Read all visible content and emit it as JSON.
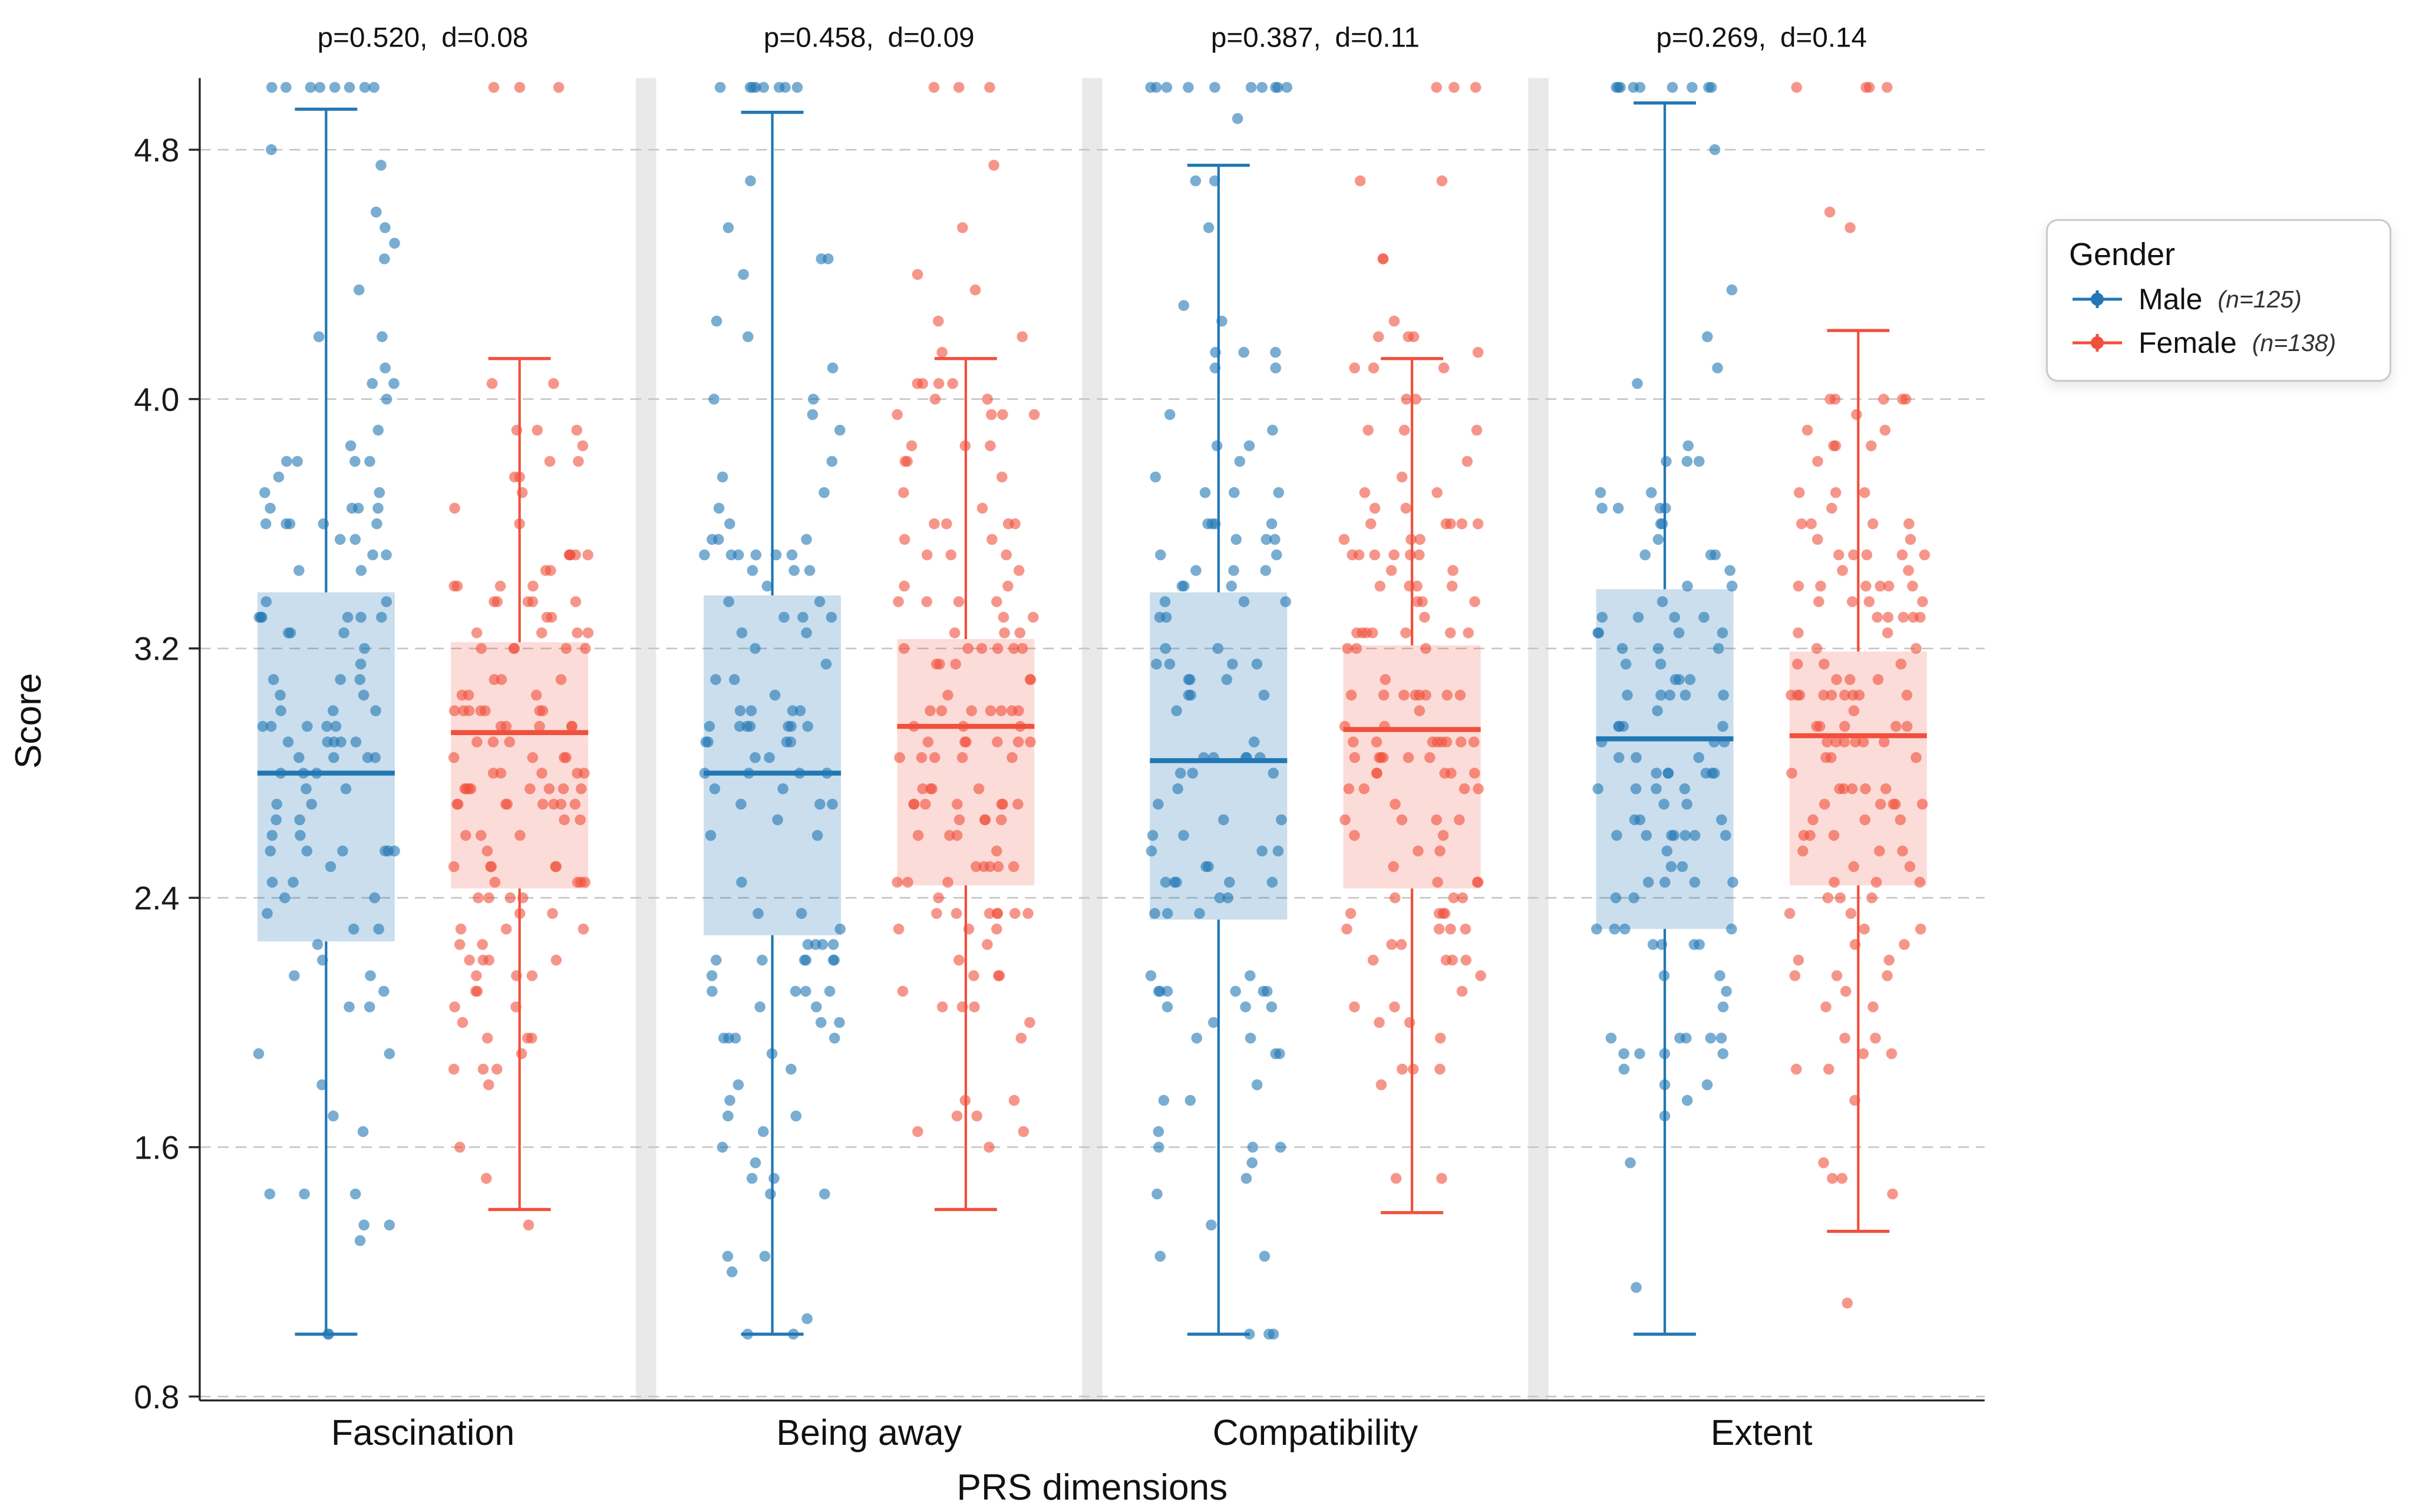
{
  "figure": {
    "background": "#ffffff"
  },
  "legend": {
    "title": "Gender",
    "items": [
      {
        "label": "Male",
        "note": "(n=125)",
        "color": "#2277b4"
      },
      {
        "label": "Female",
        "note": "(n=138)",
        "color": "#f0503c"
      }
    ]
  },
  "chart_data": {
    "type": "boxplot-with-jitter",
    "title": "",
    "xlabel": "PRS dimensions",
    "ylabel": "Score",
    "ylim": [
      0.8,
      5.03
    ],
    "yticks": [
      "0.8",
      "1.6",
      "2.4",
      "3.2",
      "4.0",
      "4.8"
    ],
    "ytick_values": [
      0.8,
      1.6,
      2.4,
      3.2,
      4.0,
      4.8
    ],
    "grid": "dashed-horizontal",
    "legend_position": "outside-upper-right",
    "categories": [
      "Fascination",
      "Being away",
      "Compatibility",
      "Extent"
    ],
    "series": [
      {
        "name": "Male",
        "n": 125,
        "color": "#2277b4",
        "box_fill_opacity": 0.24,
        "stats": [
          {
            "category": "Fascination",
            "whisker_low": 1.0,
            "q1": 2.26,
            "median": 2.8,
            "q3": 3.38,
            "whisker_high": 4.93,
            "ceiling_points": 8
          },
          {
            "category": "Being away",
            "whisker_low": 1.0,
            "q1": 2.28,
            "median": 2.8,
            "q3": 3.37,
            "whisker_high": 4.92,
            "ceiling_points": 7
          },
          {
            "category": "Compatibility",
            "whisker_low": 1.0,
            "q1": 2.33,
            "median": 2.84,
            "q3": 3.38,
            "whisker_high": 4.75,
            "ceiling_points": 8
          },
          {
            "category": "Extent",
            "whisker_low": 1.0,
            "q1": 2.3,
            "median": 2.91,
            "q3": 3.39,
            "whisker_high": 4.95,
            "ceiling_points": 9
          }
        ]
      },
      {
        "name": "Female",
        "n": 138,
        "color": "#f0503c",
        "box_fill_opacity": 0.2,
        "stats": [
          {
            "category": "Fascination",
            "whisker_low": 1.4,
            "q1": 2.43,
            "median": 2.93,
            "q3": 3.22,
            "whisker_high": 4.13,
            "ceiling_points": 3
          },
          {
            "category": "Being away",
            "whisker_low": 1.4,
            "q1": 2.44,
            "median": 2.95,
            "q3": 3.23,
            "whisker_high": 4.13,
            "ceiling_points": 3
          },
          {
            "category": "Compatibility",
            "whisker_low": 1.39,
            "q1": 2.43,
            "median": 2.94,
            "q3": 3.21,
            "whisker_high": 4.13,
            "ceiling_points": 3
          },
          {
            "category": "Extent",
            "whisker_low": 1.33,
            "q1": 2.44,
            "median": 2.92,
            "q3": 3.19,
            "whisker_high": 4.22,
            "ceiling_points": 3
          }
        ]
      }
    ],
    "annotations": [
      {
        "label_p": "p=0.520,",
        "label_d": "d=0.08",
        "p_value": 0.52,
        "d_value": 0.08
      },
      {
        "label_p": "p=0.458,",
        "label_d": "d=0.09",
        "p_value": 0.458,
        "d_value": 0.09
      },
      {
        "label_p": "p=0.387,",
        "label_d": "d=0.11",
        "p_value": 0.387,
        "d_value": 0.11
      },
      {
        "label_p": "p=0.269,",
        "label_d": "d=0.14",
        "p_value": 0.269,
        "d_value": 0.14
      }
    ]
  }
}
